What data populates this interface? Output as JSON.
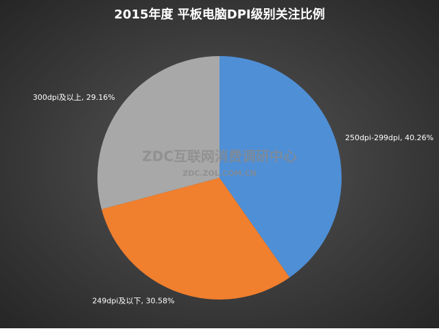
{
  "chart_data": {
    "type": "pie",
    "title": "2015年度 平板电脑DPI级别关注比例",
    "values": [
      40.26,
      30.58,
      29.16
    ],
    "value_labels": [
      "250dpi-299dpi, 40.26%",
      "249dpi及以下, 30.58%",
      "300dpi及以上, 29.16%"
    ],
    "colors": [
      "#4f8fd6",
      "#f07f2e",
      "#a8a8a8"
    ],
    "watermark": "ZDC互联网消费调研中心",
    "watermark_url": "ZDC.ZOL.COM.CN"
  }
}
